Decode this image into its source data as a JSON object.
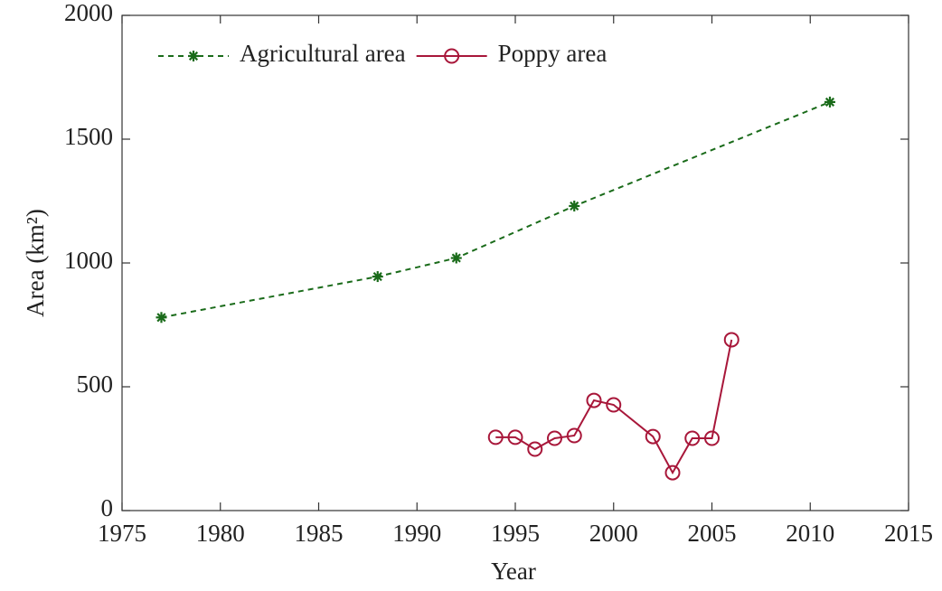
{
  "chart_data": {
    "type": "line",
    "xlabel": "Year",
    "ylabel": "Area (km²)",
    "xlim": [
      1975,
      2015
    ],
    "xticks": [
      1975,
      1980,
      1985,
      1990,
      1995,
      2000,
      2005,
      2010,
      2015
    ],
    "ylim": [
      0,
      2000
    ],
    "yticks": [
      0,
      500,
      1000,
      1500,
      2000
    ],
    "grid": false,
    "legend": "top-left",
    "series": [
      {
        "name": "Agricultural area",
        "color": "#1a6b1a",
        "linestyle": "dashed",
        "marker": "asterisk",
        "x": [
          1977,
          1988,
          1992,
          1998,
          2011
        ],
        "values": [
          780,
          945,
          1020,
          1230,
          1650
        ]
      },
      {
        "name": "Poppy area",
        "color": "#a8173a",
        "linestyle": "solid",
        "marker": "circle",
        "x": [
          1994,
          1995,
          1996,
          1997,
          1998,
          1999,
          2000,
          2002,
          2003,
          2004,
          2005,
          2006
        ],
        "values": [
          296,
          296,
          248,
          292,
          303,
          445,
          427,
          299,
          153,
          292,
          292,
          690
        ]
      }
    ]
  }
}
